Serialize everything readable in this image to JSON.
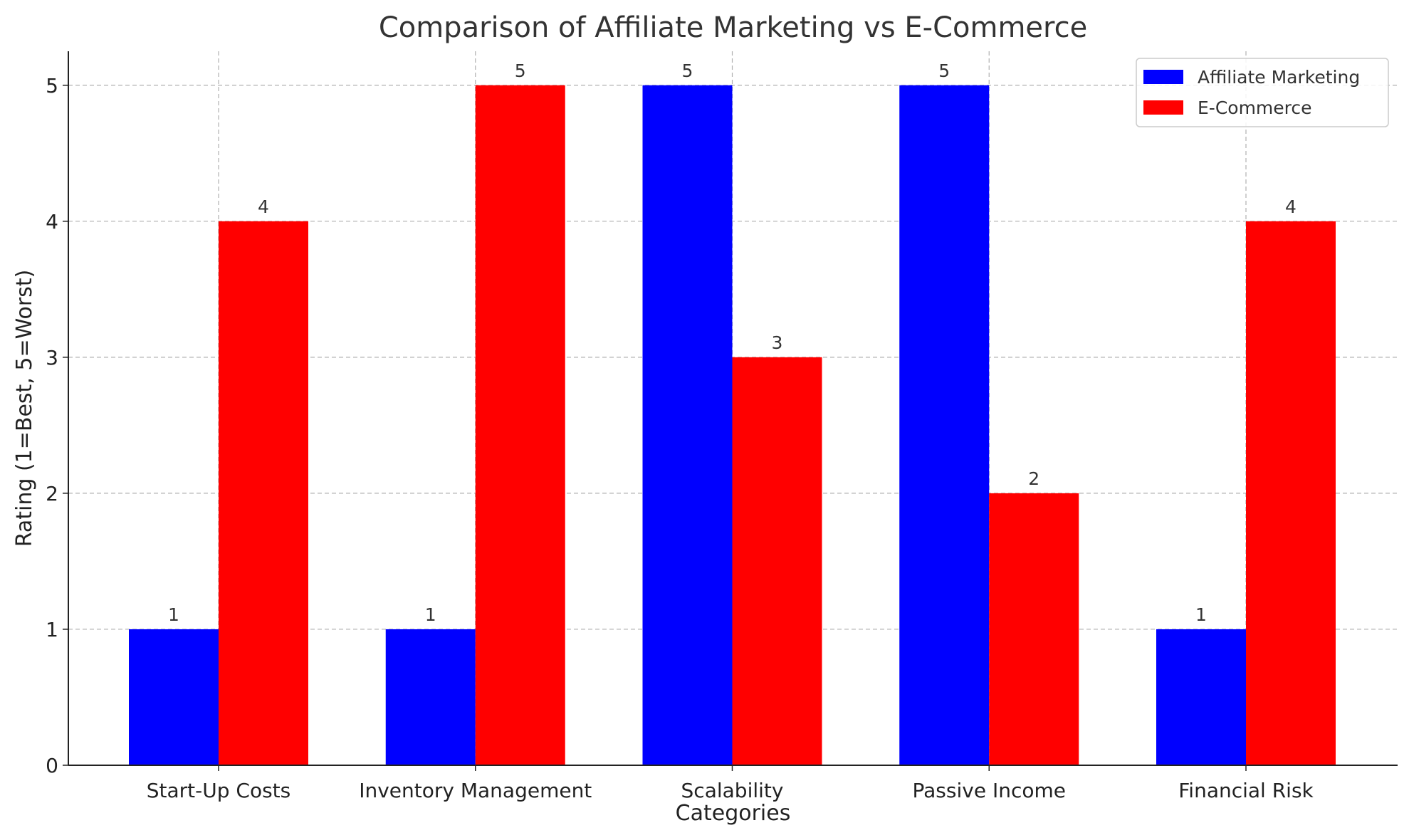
{
  "chart_data": {
    "type": "bar",
    "title": "Comparison of Affiliate Marketing vs E-Commerce",
    "xlabel": "Categories",
    "ylabel": "Rating (1=Best, 5=Worst)",
    "categories": [
      "Start-Up Costs",
      "Inventory Management",
      "Scalability",
      "Passive Income",
      "Financial Risk"
    ],
    "series": [
      {
        "name": "Affiliate Marketing",
        "color": "#0000ff",
        "values": [
          1,
          1,
          5,
          5,
          1
        ]
      },
      {
        "name": "E-Commerce",
        "color": "#ff0000",
        "values": [
          4,
          5,
          3,
          2,
          4
        ]
      }
    ],
    "ylim": [
      0,
      5.25
    ],
    "yticks": [
      0,
      1,
      2,
      3,
      4,
      5
    ],
    "grid": true,
    "legend_position": "top-right",
    "data_labels": true
  }
}
